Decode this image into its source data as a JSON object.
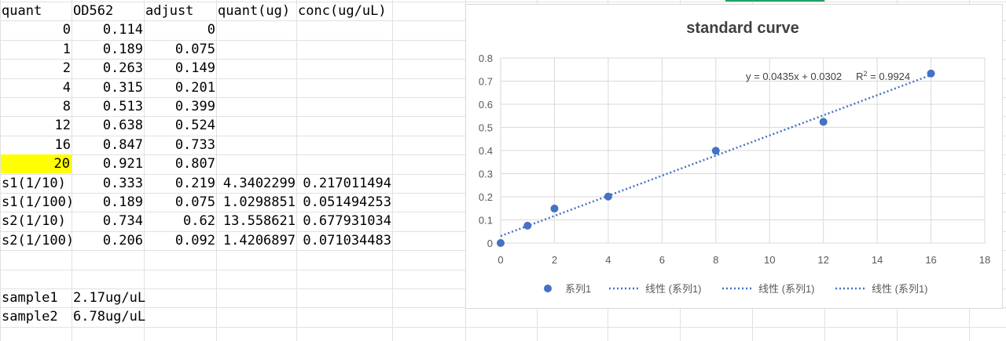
{
  "sheet": {
    "headers": [
      "quant",
      "OD562",
      "adjust",
      "quant(ug)",
      "conc(ug/uL)"
    ],
    "rows": [
      [
        "0",
        "0.114",
        "0",
        "",
        ""
      ],
      [
        "1",
        "0.189",
        "0.075",
        "",
        ""
      ],
      [
        "2",
        "0.263",
        "0.149",
        "",
        ""
      ],
      [
        "4",
        "0.315",
        "0.201",
        "",
        ""
      ],
      [
        "8",
        "0.513",
        "0.399",
        "",
        ""
      ],
      [
        "12",
        "0.638",
        "0.524",
        "",
        ""
      ],
      [
        "16",
        "0.847",
        "0.733",
        "",
        ""
      ],
      [
        "20",
        "0.921",
        "0.807",
        "",
        ""
      ],
      [
        "s1(1/10)",
        "0.333",
        "0.219",
        "4.3402299",
        "0.217011494"
      ],
      [
        "s1(1/100)",
        "0.189",
        "0.075",
        "1.0298851",
        "0.051494253"
      ],
      [
        "s2(1/10)",
        "0.734",
        "0.62",
        "13.558621",
        "0.677931034"
      ],
      [
        "s2(1/100)",
        "0.206",
        "0.092",
        "1.4206897",
        "0.071034483"
      ],
      [
        "",
        "",
        "",
        "",
        ""
      ],
      [
        "",
        "",
        "",
        "",
        ""
      ],
      [
        "sample1",
        "2.17ug/uL",
        "",
        "",
        ""
      ],
      [
        "sample2",
        "6.78ug/uL",
        "",
        "",
        ""
      ]
    ],
    "highlight_row_index": 7,
    "highlight_color": "#ffff00",
    "grid_color": "#e1e1e1"
  },
  "chart_data": {
    "type": "scatter",
    "title": "standard curve",
    "xlim": [
      0,
      18
    ],
    "ylim": [
      0,
      0.8
    ],
    "x_ticks": [
      "0",
      "2",
      "4",
      "6",
      "8",
      "10",
      "12",
      "14",
      "16",
      "18"
    ],
    "y_ticks": [
      "0",
      "0.1",
      "0.2",
      "0.3",
      "0.4",
      "0.5",
      "0.6",
      "0.7",
      "0.8"
    ],
    "grid": "vertical-and-horizontal",
    "series": [
      {
        "name": "系列1",
        "color": "#4472c4",
        "x": [
          0,
          1,
          2,
          4,
          8,
          12,
          16
        ],
        "y": [
          0,
          0.075,
          0.149,
          0.201,
          0.399,
          0.524,
          0.733
        ]
      }
    ],
    "trendline": {
      "equation": "y = 0.0435x + 0.0302",
      "r2_prefix": "R",
      "r2_sup": "2",
      "r2_value": " = 0.9924",
      "slope": 0.0435,
      "intercept": 0.0302,
      "x_range": [
        0,
        16
      ],
      "color": "#4472c4",
      "style": "dotted"
    },
    "legend": {
      "position": "bottom",
      "entries": [
        {
          "label": "系列1",
          "kind": "marker"
        },
        {
          "label": "线性 (系列1)",
          "kind": "dotted-line"
        },
        {
          "label": "线性 (系列1)",
          "kind": "dotted-line"
        },
        {
          "label": "线性 (系列1)",
          "kind": "dotted-line"
        }
      ]
    }
  }
}
